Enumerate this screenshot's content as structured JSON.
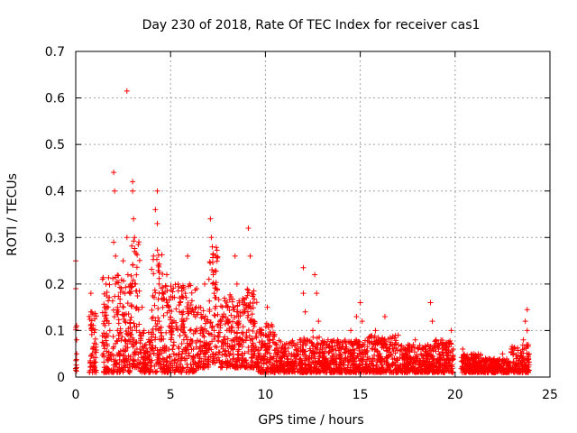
{
  "chart_data": {
    "type": "scatter",
    "title": "Day 230 of 2018, Rate Of TEC Index for receiver cas1",
    "xlabel": "GPS time / hours",
    "ylabel": "ROTI / TECUs",
    "xlim": [
      0,
      25
    ],
    "ylim": [
      0,
      0.7
    ],
    "xticks": [
      0,
      5,
      10,
      15,
      20,
      25
    ],
    "yticks": [
      0,
      0.1,
      0.2,
      0.3,
      0.4,
      0.5,
      0.6,
      0.7
    ],
    "grid": true,
    "marker": "+",
    "color": "#ff0000",
    "series": [
      {
        "name": "ROTI",
        "points": [
          [
            0.0,
            0.25
          ],
          [
            0.0,
            0.19
          ],
          [
            0.05,
            0.11
          ],
          [
            0.05,
            0.08
          ],
          [
            0.05,
            0.05
          ],
          [
            0.05,
            0.02
          ],
          [
            0.0,
            0.015
          ],
          [
            0.8,
            0.18
          ],
          [
            0.8,
            0.14
          ],
          [
            0.85,
            0.1
          ],
          [
            0.9,
            0.06
          ],
          [
            0.95,
            0.03
          ],
          [
            1.0,
            0.02
          ],
          [
            1.5,
            0.12
          ],
          [
            1.5,
            0.07
          ],
          [
            1.6,
            0.2
          ],
          [
            1.7,
            0.15
          ],
          [
            1.8,
            0.1
          ],
          [
            1.9,
            0.05
          ],
          [
            2.0,
            0.44
          ],
          [
            2.05,
            0.4
          ],
          [
            2.0,
            0.29
          ],
          [
            2.1,
            0.26
          ],
          [
            2.1,
            0.2
          ],
          [
            2.2,
            0.15
          ],
          [
            2.2,
            0.1
          ],
          [
            2.3,
            0.05
          ],
          [
            2.3,
            0.02
          ],
          [
            2.5,
            0.25
          ],
          [
            2.6,
            0.18
          ],
          [
            2.6,
            0.12
          ],
          [
            2.7,
            0.615
          ],
          [
            2.7,
            0.3
          ],
          [
            2.75,
            0.22
          ],
          [
            2.8,
            0.08
          ],
          [
            3.0,
            0.42
          ],
          [
            3.0,
            0.4
          ],
          [
            3.05,
            0.34
          ],
          [
            3.1,
            0.3
          ],
          [
            3.1,
            0.27
          ],
          [
            3.15,
            0.2
          ],
          [
            3.2,
            0.15
          ],
          [
            3.2,
            0.1
          ],
          [
            3.3,
            0.05
          ],
          [
            3.4,
            0.03
          ],
          [
            3.5,
            0.15
          ],
          [
            3.6,
            0.1
          ],
          [
            3.7,
            0.07
          ],
          [
            3.8,
            0.04
          ],
          [
            4.1,
            0.26
          ],
          [
            4.2,
            0.36
          ],
          [
            4.3,
            0.4
          ],
          [
            4.3,
            0.33
          ],
          [
            4.35,
            0.24
          ],
          [
            4.4,
            0.18
          ],
          [
            4.4,
            0.12
          ],
          [
            4.5,
            0.08
          ],
          [
            4.6,
            0.04
          ],
          [
            4.8,
            0.22
          ],
          [
            4.9,
            0.15
          ],
          [
            5.0,
            0.1
          ],
          [
            5.1,
            0.06
          ],
          [
            5.2,
            0.03
          ],
          [
            5.4,
            0.2
          ],
          [
            5.5,
            0.16
          ],
          [
            5.6,
            0.12
          ],
          [
            5.7,
            0.08
          ],
          [
            5.9,
            0.26
          ],
          [
            6.0,
            0.2
          ],
          [
            6.1,
            0.14
          ],
          [
            6.2,
            0.06
          ],
          [
            6.3,
            0.03
          ],
          [
            6.5,
            0.15
          ],
          [
            6.6,
            0.1
          ],
          [
            6.8,
            0.2
          ],
          [
            6.9,
            0.12
          ],
          [
            7.1,
            0.34
          ],
          [
            7.15,
            0.3
          ],
          [
            7.2,
            0.28
          ],
          [
            7.25,
            0.22
          ],
          [
            7.3,
            0.18
          ],
          [
            7.3,
            0.1
          ],
          [
            7.4,
            0.05
          ],
          [
            7.6,
            0.12
          ],
          [
            7.8,
            0.08
          ],
          [
            8.0,
            0.15
          ],
          [
            8.2,
            0.1
          ],
          [
            8.4,
            0.26
          ],
          [
            8.5,
            0.2
          ],
          [
            8.6,
            0.12
          ],
          [
            8.8,
            0.08
          ],
          [
            9.1,
            0.32
          ],
          [
            9.2,
            0.26
          ],
          [
            9.3,
            0.18
          ],
          [
            9.4,
            0.12
          ],
          [
            9.5,
            0.06
          ],
          [
            9.6,
            0.03
          ],
          [
            9.8,
            0.1
          ],
          [
            10.0,
            0.05
          ],
          [
            10.1,
            0.15
          ],
          [
            10.2,
            0.08
          ],
          [
            10.4,
            0.04
          ],
          [
            10.6,
            0.07
          ],
          [
            10.8,
            0.04
          ],
          [
            11.0,
            0.06
          ],
          [
            11.2,
            0.03
          ],
          [
            11.5,
            0.05
          ],
          [
            11.8,
            0.08
          ],
          [
            12.0,
            0.235
          ],
          [
            12.0,
            0.18
          ],
          [
            12.1,
            0.14
          ],
          [
            12.2,
            0.08
          ],
          [
            12.3,
            0.04
          ],
          [
            12.5,
            0.1
          ],
          [
            12.6,
            0.22
          ],
          [
            12.7,
            0.18
          ],
          [
            12.8,
            0.12
          ],
          [
            13.0,
            0.06
          ],
          [
            13.3,
            0.08
          ],
          [
            13.6,
            0.05
          ],
          [
            13.9,
            0.07
          ],
          [
            14.2,
            0.04
          ],
          [
            14.5,
            0.1
          ],
          [
            14.8,
            0.13
          ],
          [
            15.0,
            0.16
          ],
          [
            15.1,
            0.12
          ],
          [
            15.2,
            0.07
          ],
          [
            15.5,
            0.04
          ],
          [
            15.8,
            0.1
          ],
          [
            16.0,
            0.08
          ],
          [
            16.3,
            0.13
          ],
          [
            16.5,
            0.06
          ],
          [
            16.8,
            0.04
          ],
          [
            17.0,
            0.09
          ],
          [
            17.3,
            0.06
          ],
          [
            17.6,
            0.04
          ],
          [
            17.9,
            0.08
          ],
          [
            18.2,
            0.05
          ],
          [
            18.5,
            0.04
          ],
          [
            18.7,
            0.16
          ],
          [
            18.8,
            0.12
          ],
          [
            19.0,
            0.08
          ],
          [
            19.2,
            0.05
          ],
          [
            19.4,
            0.07
          ],
          [
            19.6,
            0.04
          ],
          [
            19.8,
            0.1
          ],
          [
            19.9,
            0.06
          ],
          [
            20.4,
            0.06
          ],
          [
            20.6,
            0.04
          ],
          [
            20.8,
            0.03
          ],
          [
            21.0,
            0.05
          ],
          [
            21.3,
            0.03
          ],
          [
            21.6,
            0.04
          ],
          [
            21.9,
            0.02
          ],
          [
            22.2,
            0.03
          ],
          [
            22.5,
            0.05
          ],
          [
            22.8,
            0.03
          ],
          [
            23.1,
            0.06
          ],
          [
            23.3,
            0.04
          ],
          [
            23.6,
            0.08
          ],
          [
            23.7,
            0.12
          ],
          [
            23.8,
            0.145
          ],
          [
            23.8,
            0.1
          ],
          [
            23.9,
            0.05
          ]
        ],
        "bands": [
          [
            0.0,
            0.05,
            0.01,
            0.11
          ],
          [
            0.7,
            1.1,
            0.01,
            0.14
          ],
          [
            1.4,
            2.9,
            0.01,
            0.22
          ],
          [
            2.9,
            3.4,
            0.02,
            0.3
          ],
          [
            3.4,
            4.0,
            0.01,
            0.1
          ],
          [
            4.0,
            4.6,
            0.01,
            0.28
          ],
          [
            4.6,
            6.4,
            0.01,
            0.2
          ],
          [
            6.4,
            7.0,
            0.02,
            0.15
          ],
          [
            7.0,
            7.5,
            0.03,
            0.28
          ],
          [
            7.5,
            9.0,
            0.02,
            0.18
          ],
          [
            9.0,
            9.6,
            0.02,
            0.2
          ],
          [
            9.6,
            10.5,
            0.01,
            0.12
          ],
          [
            10.5,
            12.0,
            0.01,
            0.08
          ],
          [
            12.0,
            13.2,
            0.01,
            0.09
          ],
          [
            13.2,
            15.3,
            0.01,
            0.08
          ],
          [
            15.3,
            16.9,
            0.01,
            0.09
          ],
          [
            16.9,
            18.6,
            0.01,
            0.07
          ],
          [
            18.6,
            19.9,
            0.01,
            0.08
          ],
          [
            20.3,
            21.4,
            0.01,
            0.05
          ],
          [
            21.4,
            22.9,
            0.01,
            0.04
          ],
          [
            22.9,
            23.9,
            0.01,
            0.07
          ]
        ]
      }
    ]
  }
}
